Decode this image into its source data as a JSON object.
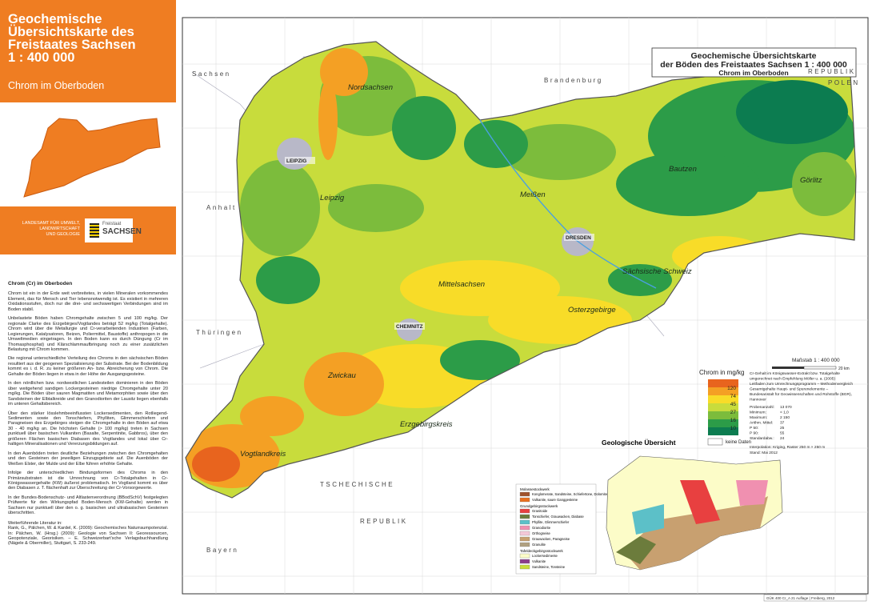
{
  "header": {
    "title_lines": [
      "Geochemische",
      "Übersichtskarte des",
      "Freistaates Sachsen",
      "1 : 400 000"
    ],
    "subtitle": "Chrom im Oberboden"
  },
  "agency": {
    "lines": [
      "LANDESAMT FÜR UMWELT,",
      "LANDWIRTSCHAFT",
      "UND GEOLOGIE"
    ],
    "state_small": "Freistaat",
    "state": "SACHSEN"
  },
  "text": {
    "heading": "Chrom (Cr) im Oberboden",
    "paragraphs": [
      "Chrom ist ein in der Erde weit verbreitetes, in vielen Mineralen vorkommendes Element, das für Mensch und Tier lebensnotwendig ist. Es existiert in mehreren Oxidationsstufen, doch nur die drei- und sechswertigen Verbindungen sind im Boden stabil.",
      "Unbelastete Böden haben Chromgehalte zwischen 5 und 100 mg/kg. Der regionale Clarke des Erzgebirges/Vogtlandes beträgt 52 mg/kg (Totalgehalte). Chrom wird über die Metallurgie und Cr-verarbeitenden Industrien (Farben, Legierungen, Katalysatoren, Beizen, Poliermittel, Baustoffe) anthropogen in die Umweltmedien eingetragen. In den Boden kann es durch Düngung (Cr im Thomasphosphat) und Klärschlammaufbringung noch zu einer zusätzlichen Belastung mit Chrom kommen.",
      "Die regional unterschiedliche Verteilung des Chroms in den sächsischen Böden resultiert aus der geogenen Spezialisierung der Substrate. Bei der Bodenbildung kommt es i. d. R. zu keiner größeren An- bzw. Abreicherung von Chrom. Die Gehalte der Böden liegen in etwa in der Höhe der Ausgangsgesteine.",
      "In den nördlichen bzw. nordwestlichen Landesteilen dominieren in den Böden über weitgehend sandigen Lockergesteinen niedrige Chromgehalte unter 20 mg/kg. Die Böden über sauren Magmatiten und Metamorphiten sowie über den Sandsteinen der Elbtalkreide und den Granodioriten der Lausitz liegen ebenfalls im unteren Gehaltsbereich.",
      "Über den stärker lösslehmbeeinflussten Lockersedimenten, den Rotliegend-Sedimenten sowie den Tonschiefern, Phylliten, Glimmerschiefern und Paragneisen des Erzgebirges steigen die Chromgehalte in den Böden auf etwa 30 - 40 mg/kg an. Die höchsten Gehalte (> 100 mg/kg) treten in Sachsen punktuell über basischen Vulkaniten (Basalte, Serpentinite, Gabbros), über den größeren Flächen basischen Diabasen des Vogtlandes und lokal über Cr-haltigen Mineralisationen und Vererzungsbildungen auf.",
      "In den Auenböden treten deutliche Beziehungen zwischen den Chromgehalten und den Gesteinen der jeweiligen Einzugsgebiete auf. Die Auenböden der Weißen Elster, der Mulde und der Elbe führen erhöhte Gehalte.",
      "Infolge der unterschiedlichen Bindungsformen des Chroms in den Primärsubstraten ist die Umrechnung von Cr-Totalgehalten in Cr-Königswassergehalte (KW) äußerst problematisch. Im Vogtland kommt es über den Diabasen z. T. flächenhaft zur Überschreitung der Cr-Vorsorgewerte.",
      "In der Bundes-Bodenschutz- und Altlastenverordnung (BBodSchV) festgelegten Prüfwerte für den Wirkungspfad Boden-Mensch (KW-Gehalte) werden in Sachsen nur punktuell über den o. g. basischen und ultrabasischen Gesteinen überschritten."
    ],
    "literature_heading": "Weiterführende Literatur in:",
    "literature": "Rank, G., Pälchen, W. & Kardel, K. (2009): Geochemisches Naturraumpotenzial. In: Pälchen, W. (Hrsg.) (2009): Geologie von Sachsen II: Georessourcen, Geopotenziale, Georisiken. – E. Schweizerbart'sche Verlagsbuchhandlung (Nägele & Obermiller), Stuttgart, S. 233-249."
  },
  "map": {
    "title_lines": [
      "Geochemische Übersichtskarte",
      "der Böden des Freistaates Sachsen 1 : 400 000"
    ],
    "subtitle": "Chrom im Oberboden",
    "neighbours": [
      "Sachsen",
      "Anhalt",
      "Brandenburg",
      "REPUBLIK",
      "POLEN",
      "Thüringen",
      "TSCHECHISCHE",
      "REPUBLIK",
      "Bayern"
    ],
    "districts": [
      "Nordsachsen",
      "Leipzig",
      "Meißen",
      "Bautzen",
      "Görlitz",
      "Sächsische Schweiz",
      "Mittelsachsen",
      "Osterzgebirge",
      "Zwickau",
      "Erzgebirgskreis",
      "Vogtlandkreis"
    ],
    "cities": [
      "LEIPZIG",
      "DRESDEN",
      "CHEMNITZ"
    ]
  },
  "scale": {
    "label": "Maßstab  1 : 400 000",
    "km": "20 km"
  },
  "legend": {
    "title": "Chrom in mg/kg",
    "breaks": [
      120,
      74,
      45,
      27,
      16,
      10
    ],
    "colors": [
      "#e8641e",
      "#f4a024",
      "#f8dc28",
      "#c8dc3c",
      "#7cbc3c",
      "#2c9c48",
      "#0c7c50"
    ],
    "no_data": "keine Daten"
  },
  "method": {
    "lines": [
      "Cr-Gehalt im Königswasser-Extrakt bzw. Totalgehalte",
      "umgerechnet nach Empfehlung Möller u. a. (2005)",
      "Leitfaden zum Umrechnungsprogramm – Methodenvergleich",
      "Gesamtgehalte Haupt- und Spurenelemente –",
      "Bundesanstalt für Geowissenschaften und Rohstoffe (BGR),",
      "Hannover"
    ],
    "stats": [
      [
        "Probenanzahl:",
        "13 070"
      ],
      [
        "Minimum:",
        "< 1,0"
      ],
      [
        "Maximum:",
        "2 150"
      ],
      [
        "Arithm. Mittel:",
        "37"
      ],
      [
        "P 50:",
        "25"
      ],
      [
        "P 90:",
        "55"
      ],
      [
        "Standardabw.:",
        "24"
      ]
    ],
    "interpolation": "Interpolation: Kriging, Raster 250 m × 250 m",
    "date": "Stand: Mai 2012"
  },
  "geology": {
    "title": "Geologische Übersicht",
    "groups": [
      {
        "name": "Molassestockwerk",
        "items": [
          {
            "label": "Konglomerate, Sandsteine, Schiefertone, Dolomite",
            "color": "#a0522d"
          },
          {
            "label": "Vulkanite, saure Ganggesteine",
            "color": "#e87020"
          }
        ]
      },
      {
        "name": "Grundgebirgsstockwerk",
        "items": [
          {
            "label": "Granitoide",
            "color": "#e84040"
          },
          {
            "label": "Tonschiefer, Grauwacken, Diabase",
            "color": "#6c7c3c"
          },
          {
            "label": "Phyllite, Glimmerschiefer",
            "color": "#5cc0c8"
          },
          {
            "label": "Granodiorite",
            "color": "#f090b0"
          },
          {
            "label": "Orthogneise",
            "color": "#f4c8d8"
          },
          {
            "label": "Grauwacken, Paragneise",
            "color": "#c8a070"
          },
          {
            "label": "Granulite",
            "color": "#b0a080"
          }
        ]
      },
      {
        "name": "Tafeldeckgebirgsstockwerk",
        "items": [
          {
            "label": "Lockersedimente",
            "color": "#fcfcc8"
          },
          {
            "label": "Vulkanite",
            "color": "#8c3c8c"
          },
          {
            "label": "Sandsteine, Tonsteine",
            "color": "#c8dc3c"
          }
        ]
      }
    ]
  },
  "footer": "GÜK 400 Cr_A 21 Auflage | Freiberg, 2012"
}
